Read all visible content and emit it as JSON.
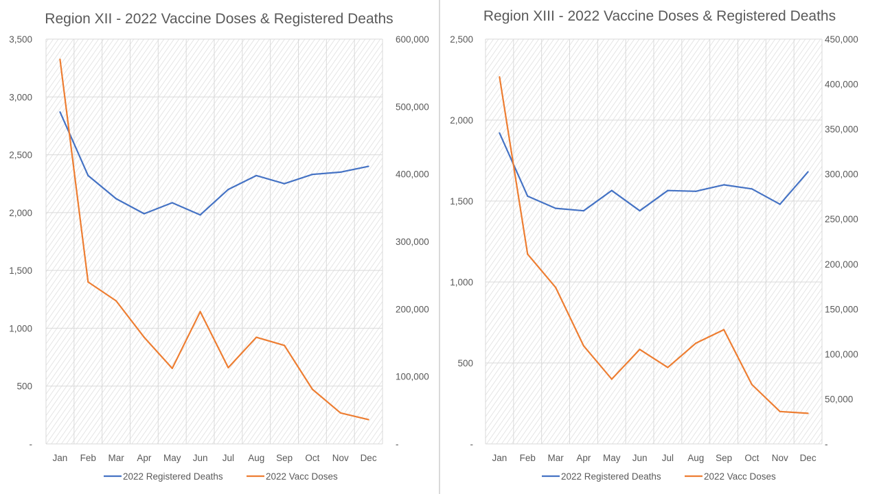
{
  "chart_data": [
    {
      "type": "line",
      "title": "Region XII - 2022 Vaccine Doses & Registered Deaths",
      "xlabel": "",
      "ylabel": "",
      "y2label": "",
      "categories": [
        "Jan",
        "Feb",
        "Mar",
        "Apr",
        "May",
        "Jun",
        "Jul",
        "Aug",
        "Sep",
        "Oct",
        "Nov",
        "Dec"
      ],
      "ylim": [
        0,
        3500
      ],
      "yticks": [
        0,
        500,
        1000,
        1500,
        2000,
        2500,
        3000,
        3500
      ],
      "ytick_labels": [
        "-",
        "500",
        "1,000",
        "1,500",
        "2,000",
        "2,500",
        "3,000",
        "3,500"
      ],
      "y2lim": [
        0,
        600000
      ],
      "y2ticks": [
        0,
        100000,
        200000,
        300000,
        400000,
        500000,
        600000
      ],
      "y2tick_labels": [
        "-",
        "100,000",
        "200,000",
        "300,000",
        "400,000",
        "500,000",
        "600,000"
      ],
      "grid": true,
      "legend": "bottom",
      "series": [
        {
          "name": "2022 Registered Deaths",
          "axis": "left",
          "color": "#4472c4",
          "values": [
            2870,
            2320,
            2120,
            1990,
            2085,
            1980,
            2200,
            2320,
            2250,
            2330,
            2350,
            2400
          ]
        },
        {
          "name": "2022 Vacc Doses",
          "axis": "right",
          "color": "#ed7d31",
          "values": [
            570000,
            240000,
            212000,
            158000,
            112000,
            196000,
            113000,
            158000,
            146000,
            81000,
            46000,
            36000
          ]
        }
      ]
    },
    {
      "type": "line",
      "title": "Region XIII - 2022 Vaccine Doses & Registered Deaths",
      "xlabel": "",
      "ylabel": "",
      "y2label": "",
      "categories": [
        "Jan",
        "Feb",
        "Mar",
        "Apr",
        "May",
        "Jun",
        "Jul",
        "Aug",
        "Sep",
        "Oct",
        "Nov",
        "Dec"
      ],
      "ylim": [
        0,
        2500
      ],
      "yticks": [
        0,
        500,
        1000,
        1500,
        2000,
        2500
      ],
      "ytick_labels": [
        "-",
        "500",
        "1,000",
        "1,500",
        "2,000",
        "2,500"
      ],
      "y2lim": [
        0,
        450000
      ],
      "y2ticks": [
        0,
        50000,
        100000,
        150000,
        200000,
        250000,
        300000,
        350000,
        400000,
        450000
      ],
      "y2tick_labels": [
        "-",
        "50,000",
        "100,000",
        "150,000",
        "200,000",
        "250,000",
        "300,000",
        "350,000",
        "400,000",
        "450,000"
      ],
      "grid": true,
      "legend": "bottom",
      "series": [
        {
          "name": "2022 Registered Deaths",
          "axis": "left",
          "color": "#4472c4",
          "values": [
            1920,
            1530,
            1455,
            1440,
            1565,
            1440,
            1565,
            1560,
            1600,
            1575,
            1480,
            1680
          ]
        },
        {
          "name": "2022 Vacc Doses",
          "axis": "right",
          "color": "#ed7d31",
          "values": [
            408000,
            211000,
            174000,
            109000,
            72000,
            105000,
            85000,
            112000,
            127000,
            66000,
            36000,
            34000
          ]
        }
      ]
    }
  ]
}
